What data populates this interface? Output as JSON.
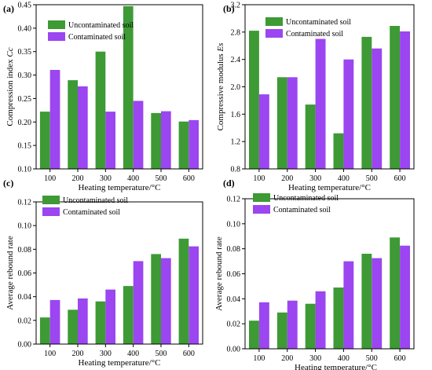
{
  "colors": {
    "uncontaminated": "#3d9a34",
    "contaminated": "#9b46f0"
  },
  "chart_data": [
    {
      "panel": "(a)",
      "type": "bar",
      "categories": [
        "100",
        "200",
        "300",
        "400",
        "500",
        "600"
      ],
      "xlabel": "Heating temperature/°C",
      "ylabel": "Compression index Cc",
      "ylim": [
        0.1,
        0.45
      ],
      "yticks": [
        "0.10",
        "0.15",
        "0.20",
        "0.25",
        "0.30",
        "0.35",
        "0.40",
        "0.45"
      ],
      "series": [
        {
          "name": "Uncontaminated soil",
          "values": [
            0.222,
            0.289,
            0.35,
            0.447,
            0.219,
            0.201
          ]
        },
        {
          "name": "Contaminated soil",
          "values": [
            0.311,
            0.276,
            0.222,
            0.245,
            0.223,
            0.204
          ]
        }
      ]
    },
    {
      "panel": "(b)",
      "type": "bar",
      "categories": [
        "100",
        "200",
        "300",
        "400",
        "500",
        "600"
      ],
      "xlabel": "Heating temperature/°C",
      "ylabel": "Compressive modulus Es",
      "ylim": [
        0.8,
        3.2
      ],
      "yticks": [
        "0.8",
        "1.2",
        "1.6",
        "2.0",
        "2.4",
        "2.8",
        "3.2"
      ],
      "series": [
        {
          "name": "Uncontaminated soil",
          "values": [
            2.82,
            2.14,
            1.74,
            1.32,
            2.73,
            2.89
          ]
        },
        {
          "name": "Contaminated soil",
          "values": [
            1.89,
            2.14,
            2.7,
            2.4,
            2.56,
            2.81
          ]
        }
      ]
    },
    {
      "panel": "(c)",
      "type": "bar",
      "categories": [
        "100",
        "200",
        "300",
        "400",
        "500",
        "600"
      ],
      "xlabel": "Heating temperature/°C",
      "ylabel": "Average rebound rate",
      "ylim": [
        0.0,
        0.12
      ],
      "yticks": [
        "0.00",
        "0.02",
        "0.04",
        "0.06",
        "0.08",
        "0.10",
        "0.12"
      ],
      "series": [
        {
          "name": "Uncontaminated soil",
          "values": [
            0.0225,
            0.029,
            0.036,
            0.049,
            0.076,
            0.089
          ]
        },
        {
          "name": "Contaminated soil",
          "values": [
            0.0372,
            0.0385,
            0.046,
            0.07,
            0.0725,
            0.0825
          ]
        }
      ]
    },
    {
      "panel": "(d)",
      "type": "bar",
      "categories": [
        "100",
        "200",
        "300",
        "400",
        "500",
        "600"
      ],
      "xlabel": "Heating temperature/°C",
      "ylabel": "Average rebound rate",
      "ylim": [
        0.0,
        0.12
      ],
      "yticks": [
        "0.00",
        "0.02",
        "0.04",
        "0.06",
        "0.08",
        "0.10",
        "0.12"
      ],
      "series": [
        {
          "name": "Uncontaminated soil",
          "values": [
            0.0225,
            0.029,
            0.036,
            0.049,
            0.076,
            0.089
          ]
        },
        {
          "name": "Contaminated soil",
          "values": [
            0.0372,
            0.0385,
            0.046,
            0.07,
            0.0725,
            0.0825
          ]
        }
      ]
    }
  ]
}
